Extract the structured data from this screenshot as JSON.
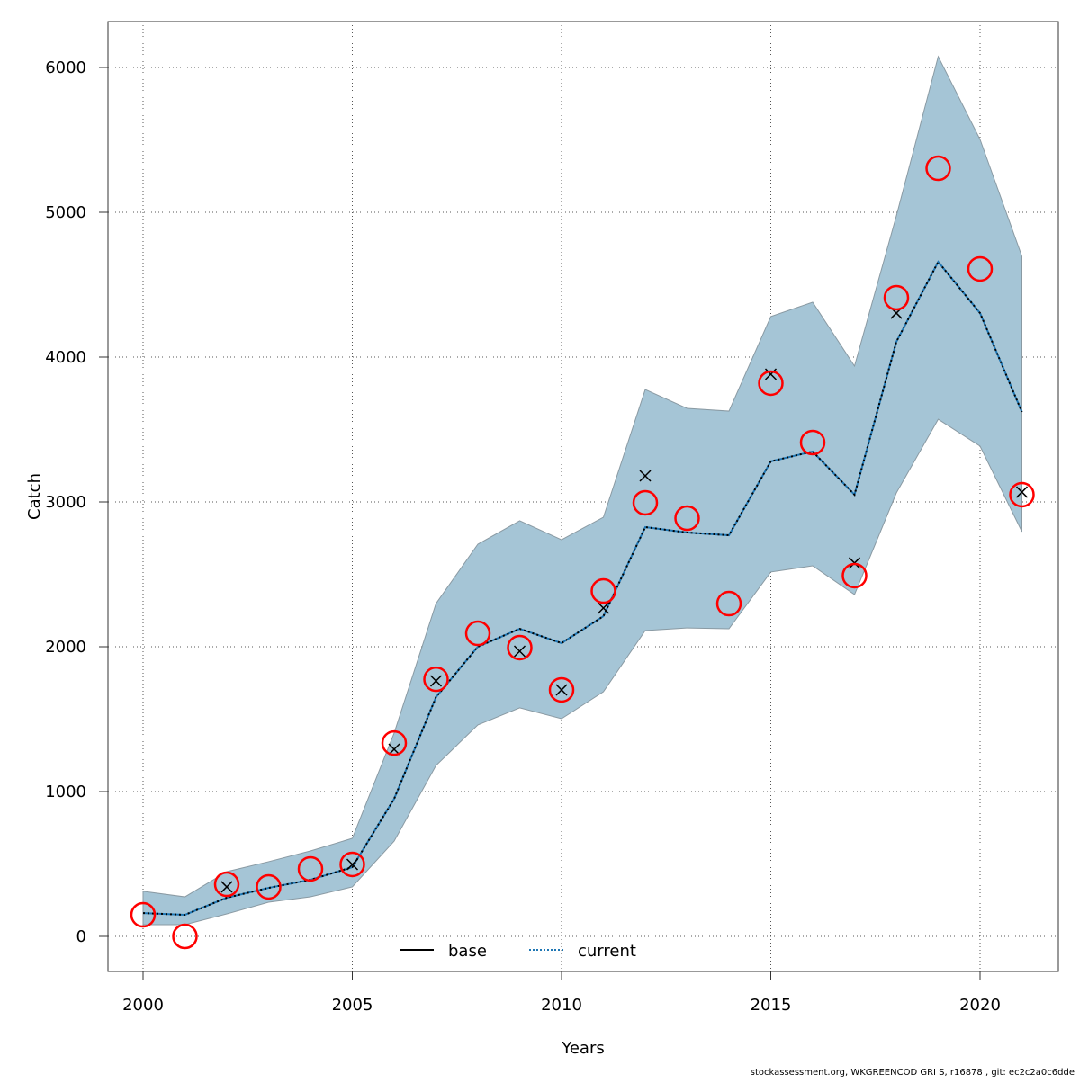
{
  "chart_data": {
    "type": "line",
    "xlabel": "Years",
    "ylabel": "Catch",
    "xlim": [
      1999.2,
      2021.8
    ],
    "ylim": [
      -250,
      6320
    ],
    "xticks": [
      2000,
      2005,
      2010,
      2015,
      2020
    ],
    "yticks": [
      0,
      1000,
      2000,
      3000,
      4000,
      5000,
      6000
    ],
    "grid": true,
    "legend_position": "bottom-center",
    "x": [
      2000,
      2001,
      2002,
      2003,
      2004,
      2005,
      2006,
      2007,
      2008,
      2009,
      2010,
      2011,
      2012,
      2013,
      2014,
      2015,
      2016,
      2017,
      2018,
      2019,
      2020,
      2021
    ],
    "series": [
      {
        "name": "base",
        "color": "#000000",
        "style": "solid",
        "values": [
          161,
          149,
          267,
          335,
          391,
          478,
          950,
          1652,
          2000,
          2124,
          2025,
          2211,
          2826,
          2789,
          2770,
          3280,
          3348,
          3050,
          4106,
          4658,
          4304,
          3621
        ]
      },
      {
        "name": "current",
        "color": "#1f77b4",
        "style": "dotted",
        "values": [
          161,
          149,
          267,
          335,
          391,
          478,
          950,
          1652,
          2000,
          2124,
          2025,
          2211,
          2826,
          2789,
          2770,
          3280,
          3348,
          3050,
          4106,
          4658,
          4304,
          3621
        ]
      }
    ],
    "confidence_band": {
      "color": "#a5c5d6",
      "upper": [
        311,
        273,
        447,
        516,
        590,
        677,
        1404,
        2298,
        2708,
        2870,
        2739,
        2894,
        3776,
        3646,
        3627,
        4280,
        4379,
        3938,
        4975,
        6075,
        5503,
        4696
      ],
      "lower": [
        81,
        81,
        155,
        236,
        273,
        342,
        658,
        1180,
        1460,
        1578,
        1503,
        1689,
        2112,
        2130,
        2124,
        2516,
        2559,
        2360,
        3062,
        3571,
        3385,
        2795
      ]
    },
    "observed_circles": {
      "color": "#ff0000",
      "values": [
        149,
        0,
        360,
        342,
        466,
        497,
        1335,
        1776,
        2093,
        1994,
        1702,
        2385,
        2994,
        2888,
        2298,
        3820,
        3410,
        2491,
        4410,
        5304,
        4609,
        3050
      ]
    },
    "cross_points": {
      "x": [
        2002,
        2005,
        2006,
        2007,
        2009,
        2010,
        2011,
        2012,
        2015,
        2017,
        2018,
        2021
      ],
      "values": [
        342,
        497,
        1292,
        1764,
        1969,
        1702,
        2267,
        3180,
        3882,
        2578,
        4304,
        3068
      ]
    }
  },
  "footer": "stockassessment.org, WKGREENCOD  GRI  S, r16878 , git: ec2c2a0c6dde"
}
